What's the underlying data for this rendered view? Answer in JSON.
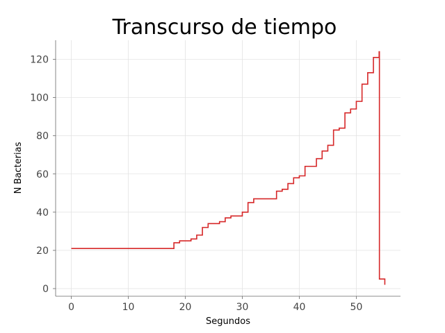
{
  "chart_data": {
    "type": "line",
    "title": "Transcurso de tiempo",
    "xlabel": "Segundos",
    "ylabel": "N Bacterias",
    "xlim": [
      -2.75,
      57.75
    ],
    "ylim": [
      -4,
      130
    ],
    "x_ticks": [
      0,
      10,
      20,
      30,
      40,
      50
    ],
    "y_ticks": [
      0,
      20,
      40,
      60,
      80,
      100,
      120
    ],
    "grid": true,
    "line_color": "#d62728",
    "step": "post",
    "series": [
      {
        "x": [
          0,
          18,
          19,
          21,
          22,
          23,
          24,
          26,
          27,
          28,
          30,
          31,
          32,
          36,
          37,
          38,
          39,
          40,
          41,
          43,
          44,
          45,
          46,
          47,
          48,
          49,
          50,
          51,
          52,
          53,
          54,
          54.05,
          55,
          55
        ],
        "y": [
          21,
          24,
          25,
          26,
          28,
          32,
          34,
          35,
          37,
          38,
          40,
          45,
          47,
          51,
          52,
          55,
          58,
          59,
          64,
          68,
          72,
          75,
          83,
          84,
          92,
          94,
          98,
          107,
          113,
          121,
          124,
          5,
          5,
          2
        ]
      }
    ]
  }
}
